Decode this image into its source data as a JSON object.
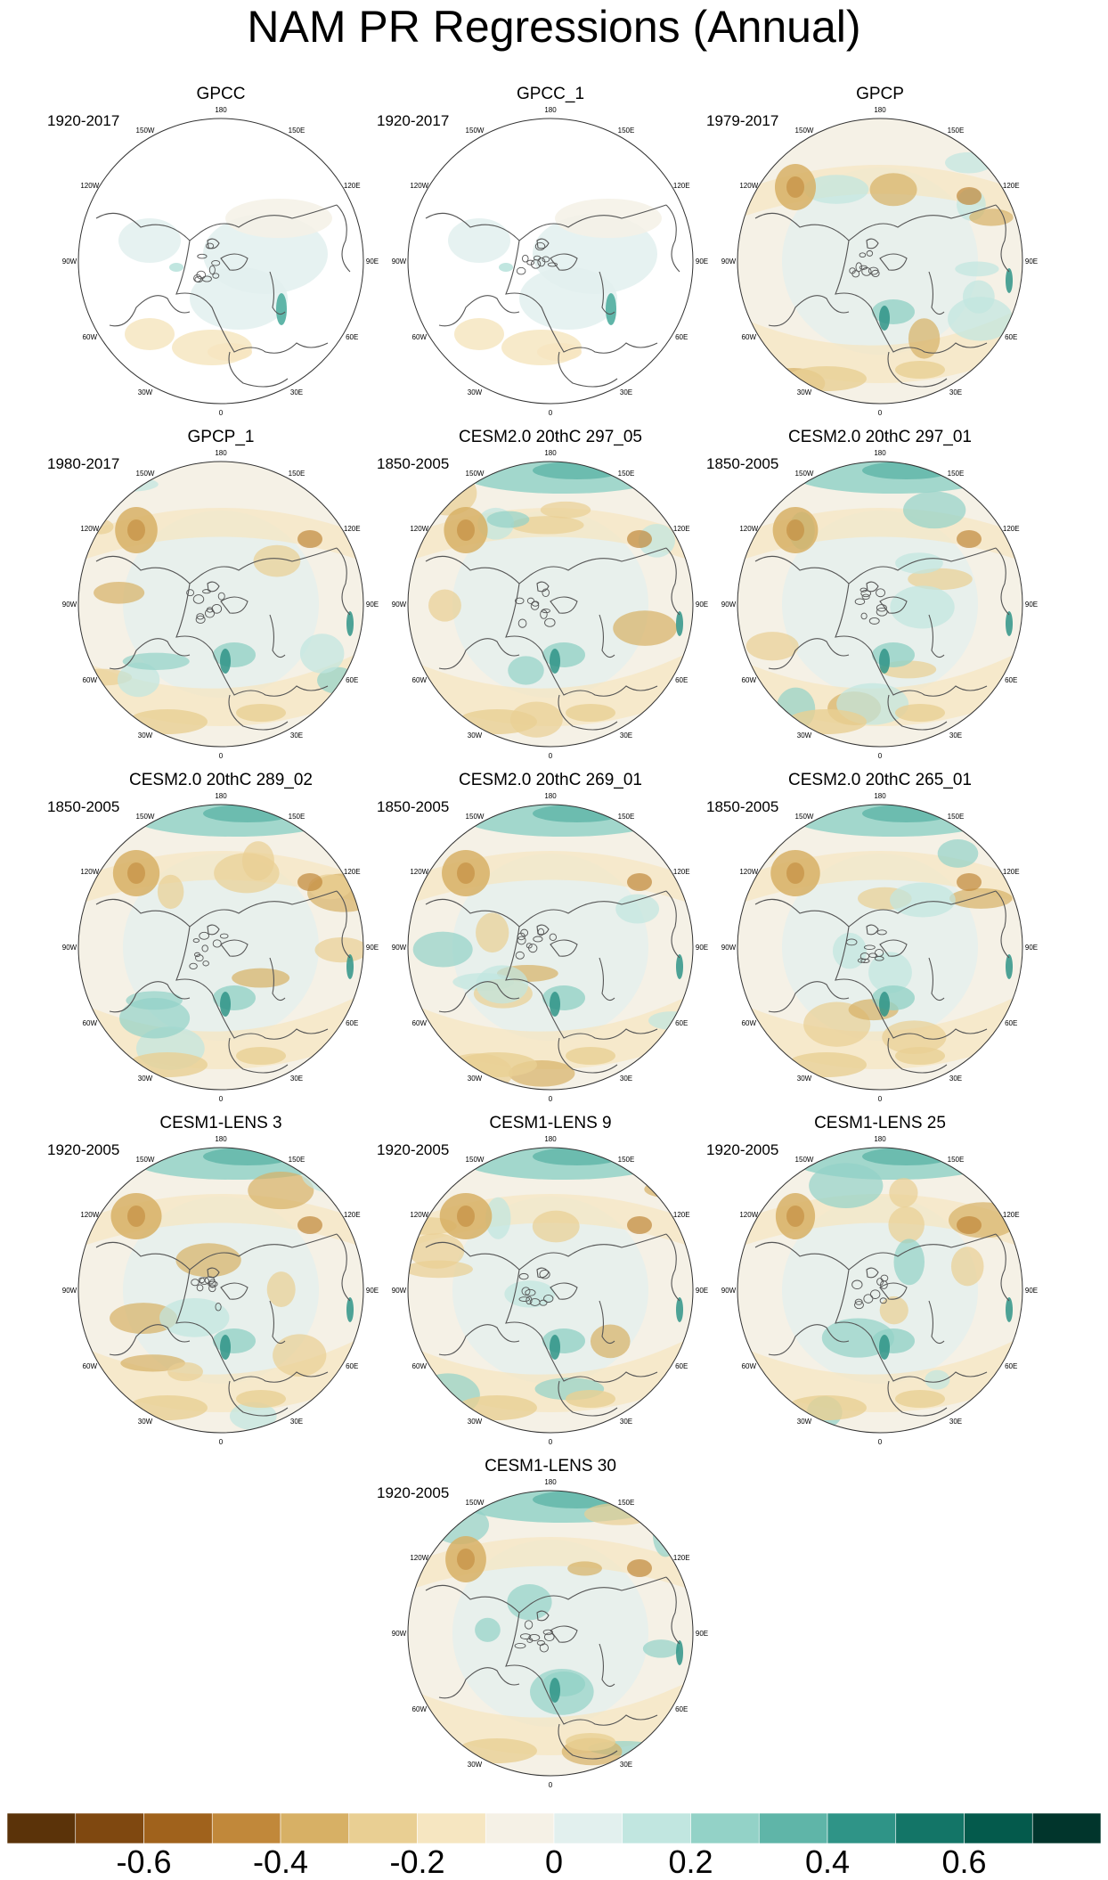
{
  "title": "NAM PR Regressions (Annual)",
  "lon_labels": [
    "180",
    "150E",
    "120E",
    "90E",
    "60E",
    "30E",
    "0",
    "30W",
    "60W",
    "90W",
    "120W",
    "150W"
  ],
  "panels": [
    {
      "title": "GPCC",
      "period": "1920-2017",
      "type": "obs-masked"
    },
    {
      "title": "GPCC_1",
      "period": "1920-2017",
      "type": "obs-masked"
    },
    {
      "title": "GPCP",
      "period": "1979-2017",
      "type": "obs"
    },
    {
      "title": "GPCP_1",
      "period": "1980-2017",
      "type": "obs"
    },
    {
      "title": "CESM2.0 20thC 297_05",
      "period": "1850-2005",
      "type": "model"
    },
    {
      "title": "CESM2.0 20thC 297_01",
      "period": "1850-2005",
      "type": "model"
    },
    {
      "title": "CESM2.0 20thC 289_02",
      "period": "1850-2005",
      "type": "model"
    },
    {
      "title": "CESM2.0 20thC 269_01",
      "period": "1850-2005",
      "type": "model"
    },
    {
      "title": "CESM2.0 20thC 265_01",
      "period": "1850-2005",
      "type": "model"
    },
    {
      "title": "CESM1-LENS 3",
      "period": "1920-2005",
      "type": "model"
    },
    {
      "title": "CESM1-LENS 9",
      "period": "1920-2005",
      "type": "model"
    },
    {
      "title": "CESM1-LENS 25",
      "period": "1920-2005",
      "type": "model"
    },
    {
      "title": "CESM1-LENS 30",
      "period": "1920-2005",
      "type": "model"
    }
  ],
  "colorbar": {
    "colors": [
      "#5b3309",
      "#7f4810",
      "#a0621c",
      "#c1883a",
      "#d7b065",
      "#e9cf93",
      "#f6e6c1",
      "#f5f1e6",
      "#e2f0ee",
      "#c1e6e0",
      "#93d2c7",
      "#5fb5a8",
      "#2f9487",
      "#137567",
      "#045a4c",
      "#01352c"
    ],
    "labels": [
      "-0.6",
      "-0.4",
      "-0.2",
      "0",
      "0.2",
      "0.4",
      "0.6"
    ],
    "label_values": [
      -0.6,
      -0.4,
      -0.2,
      0,
      0.2,
      0.4,
      0.6
    ],
    "range": [
      -0.8,
      0.8
    ]
  }
}
